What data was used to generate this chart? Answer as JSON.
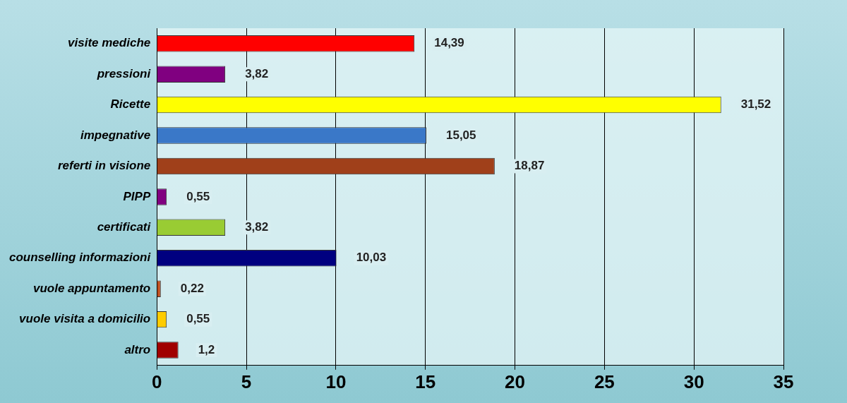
{
  "chart_data": {
    "type": "bar",
    "orientation": "horizontal",
    "categories": [
      "visite mediche",
      "pressioni",
      "Ricette",
      "impegnative",
      "referti in visione",
      "PIPP",
      "certificati",
      "counselling informazioni",
      "vuole appuntamento",
      "vuole visita a domicilio",
      "altro"
    ],
    "values": [
      14.39,
      3.82,
      31.52,
      15.05,
      18.87,
      0.55,
      3.82,
      10.03,
      0.22,
      0.55,
      1.2
    ],
    "colors": [
      "#ff0000",
      "#800080",
      "#ffff00",
      "#3a78c8",
      "#a0401a",
      "#800080",
      "#99cc33",
      "#000080",
      "#c05020",
      "#ffcc00",
      "#a00000"
    ],
    "value_labels": [
      "14,39",
      "3,82",
      "31,52",
      "15,05",
      "18,87",
      "0,55",
      "3,82",
      "10,03",
      "0,22",
      "0,55",
      "1,2"
    ],
    "xlim": [
      0,
      35
    ],
    "xticks": [
      0,
      5,
      10,
      15,
      20,
      25,
      30,
      35
    ],
    "grid": "x"
  }
}
